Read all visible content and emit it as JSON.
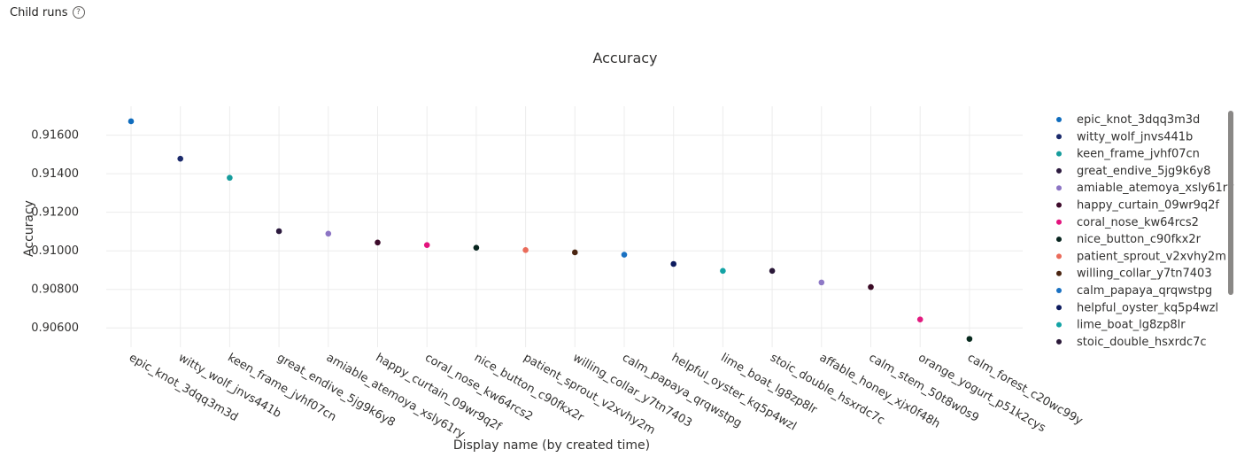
{
  "header": {
    "title": "Child runs",
    "help_icon": "?"
  },
  "chart_data": {
    "type": "scatter",
    "title": "Accuracy",
    "xlabel": "Display name (by created time)",
    "ylabel": "Accuracy",
    "ylim": [
      0.905,
      0.9175
    ],
    "yticks": [
      "0.90600",
      "0.90800",
      "0.91000",
      "0.91200",
      "0.91400",
      "0.91600"
    ],
    "ytick_values": [
      0.906,
      0.908,
      0.91,
      0.912,
      0.914,
      0.916
    ],
    "grid": true,
    "legend_position": "right",
    "points": [
      {
        "name": "epic_knot_3dqq3m3d",
        "value": 0.91672,
        "color": "#0f6cbd"
      },
      {
        "name": "witty_wolf_jnvs441b",
        "value": 0.91478,
        "color": "#1b2a6b"
      },
      {
        "name": "keen_frame_jvhf07cn",
        "value": 0.91379,
        "color": "#169c9c"
      },
      {
        "name": "great_endive_5jg9k6y8",
        "value": 0.91102,
        "color": "#2c1a3e"
      },
      {
        "name": "amiable_atemoya_xsly61ry",
        "value": 0.91089,
        "color": "#8c74c4"
      },
      {
        "name": "happy_curtain_09wr9q2f",
        "value": 0.91043,
        "color": "#3d0b2b"
      },
      {
        "name": "coral_nose_kw64rcs2",
        "value": 0.9103,
        "color": "#e3137d"
      },
      {
        "name": "nice_button_c90fkx2r",
        "value": 0.91016,
        "color": "#08251f"
      },
      {
        "name": "patient_sprout_v2xvhy2m",
        "value": 0.91004,
        "color": "#ea6b5a"
      },
      {
        "name": "willing_collar_y7tn7403",
        "value": 0.90992,
        "color": "#4a2511"
      },
      {
        "name": "calm_papaya_qrqwstpg",
        "value": 0.9098,
        "color": "#1a71c2"
      },
      {
        "name": "helpful_oyster_kq5p4wzl",
        "value": 0.90932,
        "color": "#0d1b5e"
      },
      {
        "name": "lime_boat_lg8zp8lr",
        "value": 0.90896,
        "color": "#13a3a5"
      },
      {
        "name": "stoic_double_hsxrdc7c",
        "value": 0.90896,
        "color": "#2a1838"
      },
      {
        "name": "affable_honey_xjx0f48h",
        "value": 0.90836,
        "color": "#8e79c6"
      },
      {
        "name": "calm_stem_50t8w0s9",
        "value": 0.90812,
        "color": "#3a0a25"
      },
      {
        "name": "orange_yogurt_p51k2cys",
        "value": 0.90644,
        "color": "#e21a7f"
      },
      {
        "name": "calm_forest_c20wc99y",
        "value": 0.90543,
        "color": "#082a1e"
      }
    ]
  },
  "legend_items": [
    {
      "label": "epic_knot_3dqq3m3d",
      "color": "#0f6cbd"
    },
    {
      "label": "witty_wolf_jnvs441b",
      "color": "#1b2a6b"
    },
    {
      "label": "keen_frame_jvhf07cn",
      "color": "#169c9c"
    },
    {
      "label": "great_endive_5jg9k6y8",
      "color": "#2c1a3e"
    },
    {
      "label": "amiable_atemoya_xsly61ry",
      "color": "#8c74c4"
    },
    {
      "label": "happy_curtain_09wr9q2f",
      "color": "#3d0b2b"
    },
    {
      "label": "coral_nose_kw64rcs2",
      "color": "#e3137d"
    },
    {
      "label": "nice_button_c90fkx2r",
      "color": "#08251f"
    },
    {
      "label": "patient_sprout_v2xvhy2m",
      "color": "#ea6b5a"
    },
    {
      "label": "willing_collar_y7tn7403",
      "color": "#4a2511"
    },
    {
      "label": "calm_papaya_qrqwstpg",
      "color": "#1a71c2"
    },
    {
      "label": "helpful_oyster_kq5p4wzl",
      "color": "#0d1b5e"
    },
    {
      "label": "lime_boat_lg8zp8lr",
      "color": "#13a3a5"
    },
    {
      "label": "stoic_double_hsxrdc7c",
      "color": "#2a1838"
    }
  ]
}
